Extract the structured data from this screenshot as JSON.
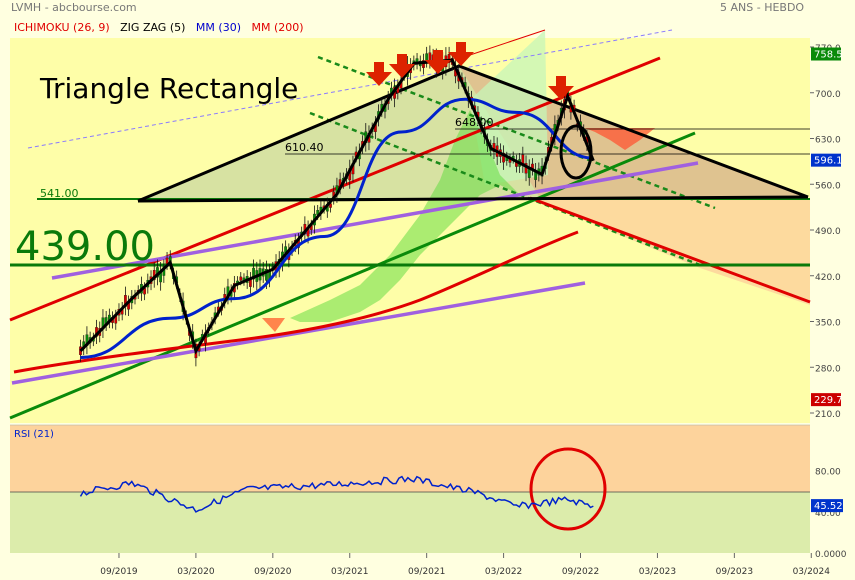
{
  "header": {
    "symbol": "LVMH - abcbourse.com",
    "period": "5 ANS - HEBDO",
    "indicators": [
      {
        "label": "ICHIMOKU (26, 9)",
        "color": "#e00000"
      },
      {
        "label": "ZIG ZAG (5)",
        "color": "#000000"
      },
      {
        "label": "MM (30)",
        "color": "#0000cc"
      },
      {
        "label": "MM (200)",
        "color": "#e00000"
      }
    ]
  },
  "annotations": {
    "pattern_title": "Triangle Rectangle",
    "support_major": "439.00",
    "support_541": "541.00",
    "level_610": "610.40",
    "level_648": "648.00"
  },
  "chart_data": [
    {
      "type": "line",
      "title": "",
      "y_axis_ticks": [
        "770.0",
        "700.0",
        "630.0",
        "560.0",
        "490.0",
        "420.0",
        "350.0",
        "280.0",
        "210.0"
      ],
      "ylim": [
        210,
        770
      ],
      "x_axis_ticks": [
        "09/2019",
        "03/2020",
        "09/2020",
        "03/2021",
        "09/2021",
        "03/2022",
        "09/2022",
        "03/2023",
        "09/2023",
        "03/2024"
      ],
      "price_badges": [
        {
          "label": "758.5",
          "value": 758.5,
          "color": "#0a8a0a"
        },
        {
          "label": "596.1",
          "value": 596.1,
          "color": "#0033cc"
        },
        {
          "label": "229.7",
          "value": 229.7,
          "color": "#cc0000"
        }
      ],
      "series": [
        {
          "name": "ZIG ZAG (5)",
          "x": [
            "2019-06",
            "2019-10",
            "2020-01",
            "2020-03",
            "2020-06",
            "2020-09",
            "2021-02",
            "2021-06",
            "2021-08",
            "2021-11",
            "2022-02",
            "2022-06",
            "2022-08",
            "2022-10"
          ],
          "y": [
            305,
            385,
            440,
            305,
            405,
            430,
            545,
            690,
            745,
            750,
            615,
            575,
            695,
            596
          ]
        },
        {
          "name": "MM (30)",
          "x": [
            "2019-06",
            "2020-01",
            "2020-06",
            "2021-01",
            "2021-07",
            "2021-12",
            "2022-04",
            "2022-10"
          ],
          "y": [
            295,
            355,
            385,
            480,
            640,
            690,
            670,
            600
          ]
        },
        {
          "name": "MM (200)",
          "x": [
            "2019-06",
            "2020-06",
            "2021-06",
            "2022-06",
            "2023-01"
          ],
          "y": [
            270,
            300,
            345,
            420,
            485
          ]
        }
      ]
    },
    {
      "type": "line",
      "title": "RSI (21)",
      "y_axis_ticks": [
        "80.00",
        "40.00",
        "0.0000"
      ],
      "ylim": [
        0,
        100
      ],
      "badge": {
        "label": "45.52",
        "value": 45.52,
        "color": "#0033cc"
      },
      "series": [
        {
          "name": "RSI (21)",
          "x": [
            "2019-06",
            "2019-10",
            "2020-03",
            "2020-07",
            "2021-01",
            "2021-08",
            "2022-01",
            "2022-04",
            "2022-08",
            "2022-10"
          ],
          "y": [
            58,
            68,
            42,
            62,
            66,
            72,
            58,
            45,
            52,
            45.5
          ]
        }
      ]
    }
  ]
}
